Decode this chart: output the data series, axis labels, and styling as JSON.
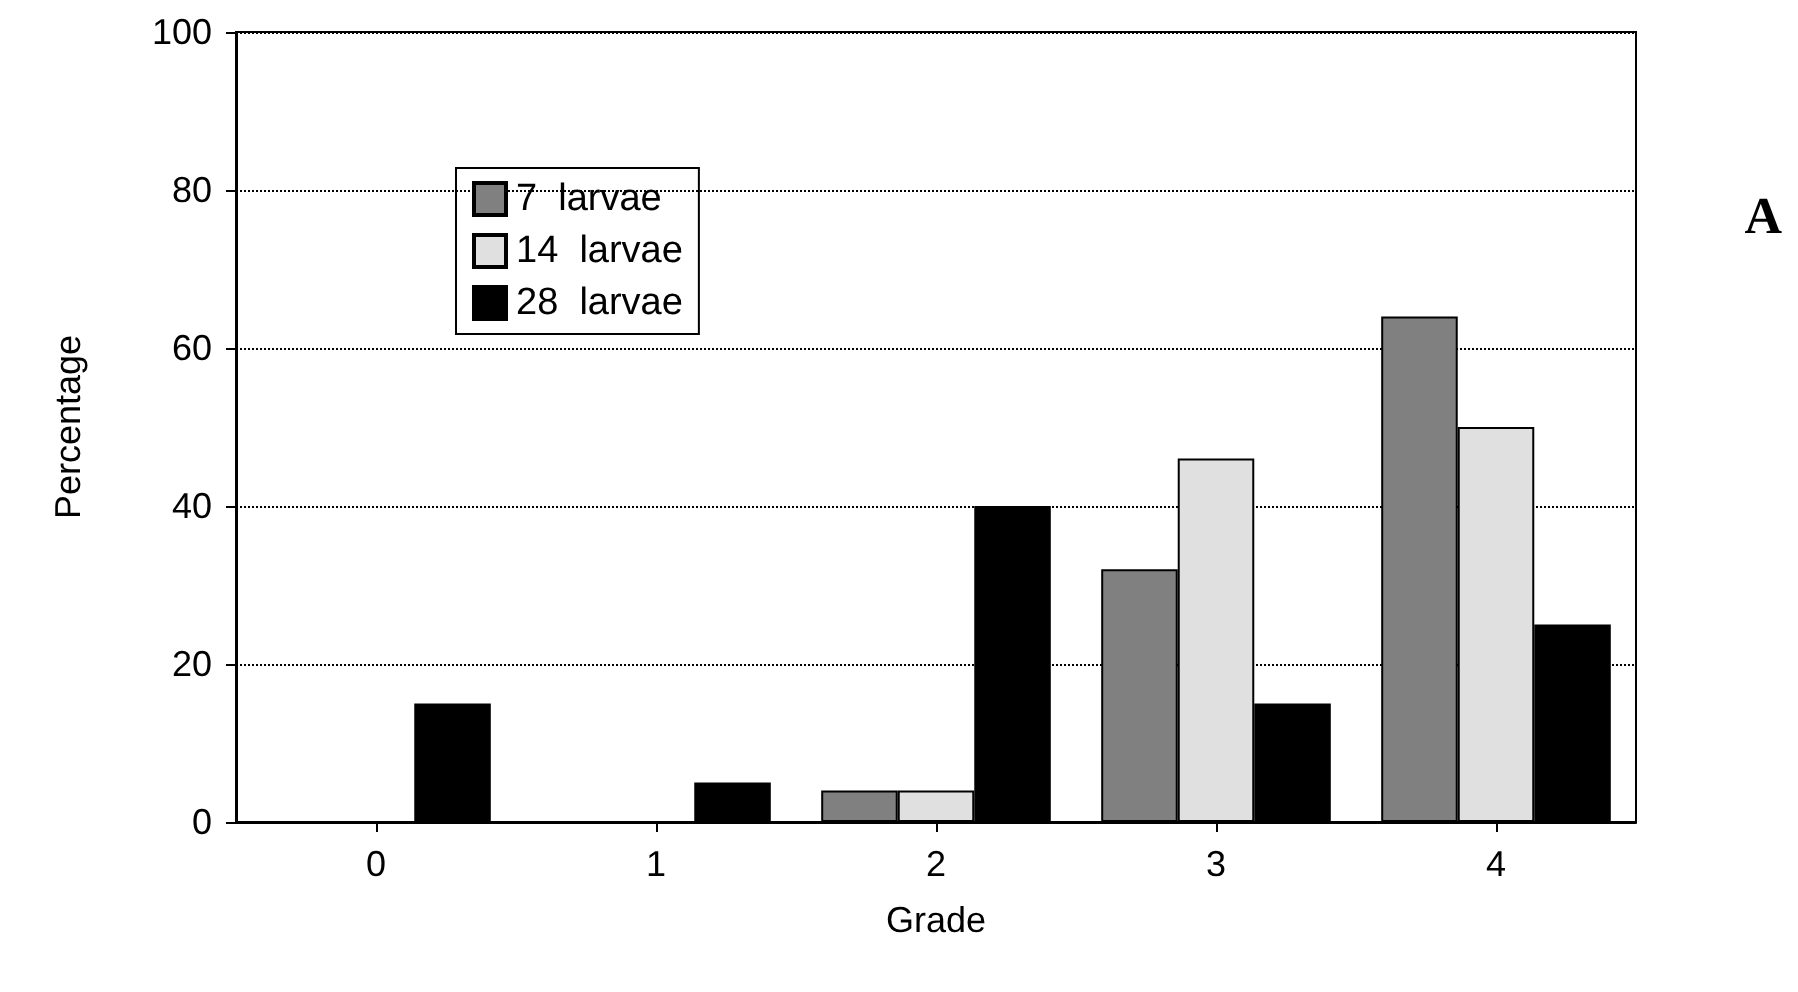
{
  "chart_data": {
    "type": "bar",
    "xlabel": "Grade",
    "ylabel": "Percentage",
    "categories": [
      "0",
      "1",
      "2",
      "3",
      "4"
    ],
    "series": [
      {
        "name": "7  larvae",
        "color": "#808080",
        "values": [
          0,
          0,
          4,
          32,
          64
        ]
      },
      {
        "name": "14  larvae",
        "color": "#e0e0e0",
        "values": [
          0,
          0,
          4,
          46,
          50
        ]
      },
      {
        "name": "28  larvae",
        "color": "#000000",
        "values": [
          15,
          5,
          40,
          15,
          25
        ]
      }
    ],
    "ylim": [
      0,
      100
    ],
    "yticks": [
      0,
      20,
      40,
      60,
      80,
      100
    ],
    "grid": "y",
    "legend": "top left",
    "annotations": [
      "A"
    ]
  }
}
